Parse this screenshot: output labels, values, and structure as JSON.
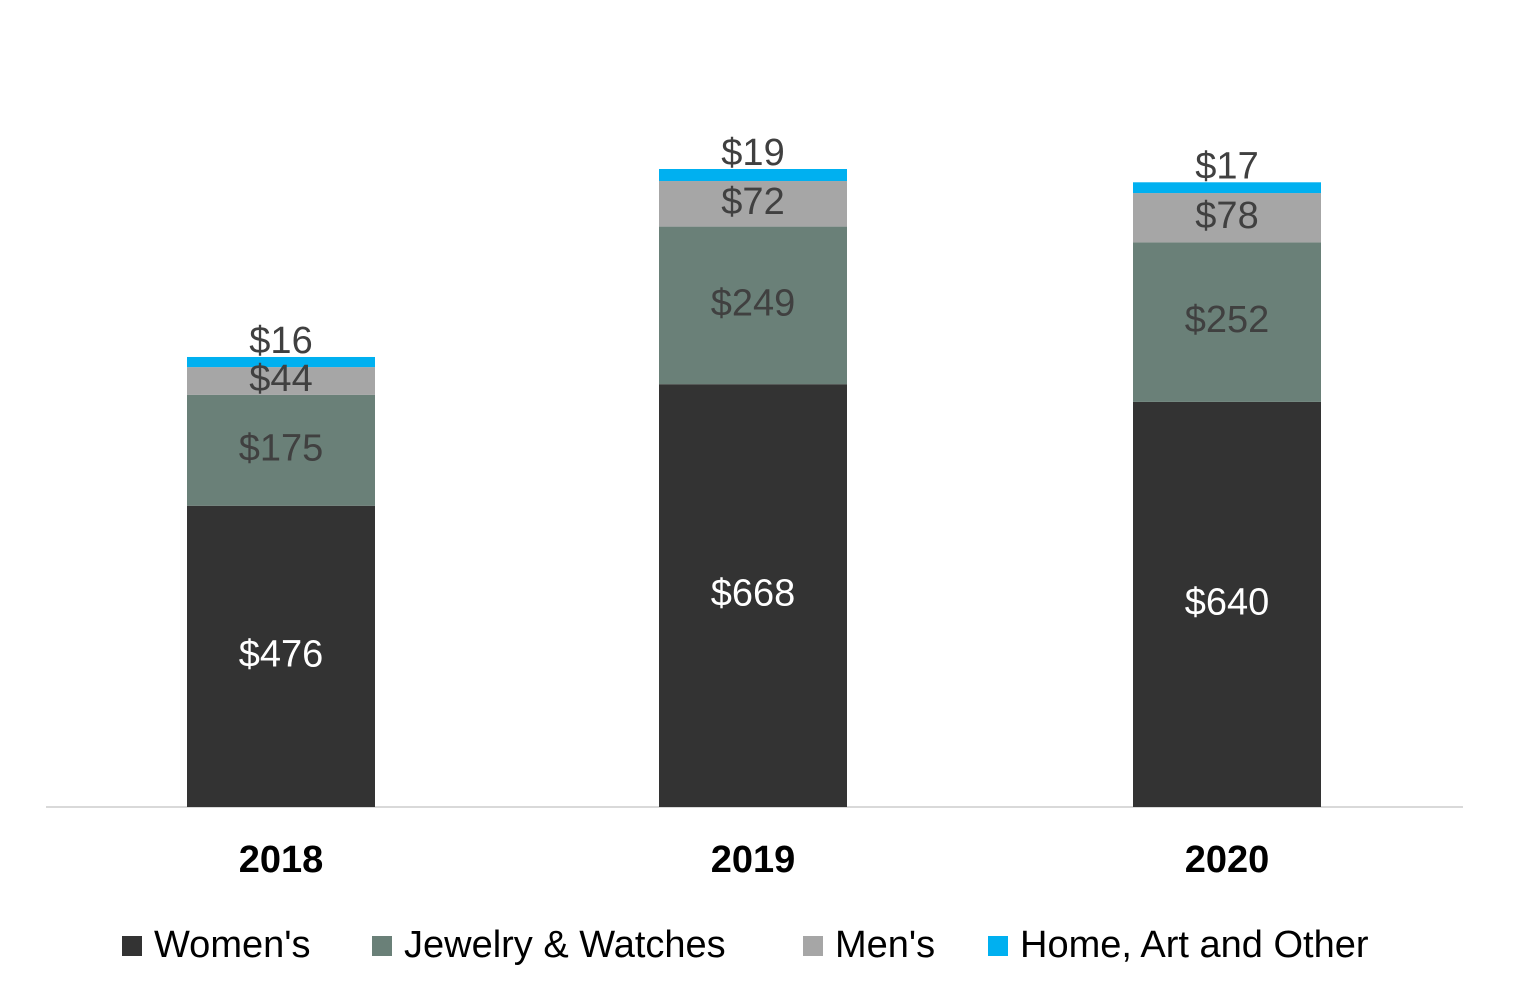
{
  "chart_data": {
    "type": "stacked_bar",
    "categories": [
      "2018",
      "2019",
      "2020"
    ],
    "series": [
      {
        "name": "Women's",
        "color": "#333333",
        "values": [
          476,
          668,
          640
        ],
        "value_labels": [
          "$476",
          "$668",
          "$640"
        ]
      },
      {
        "name": "Jewelry & Watches",
        "color": "#6a8078",
        "values": [
          175,
          249,
          252
        ],
        "value_labels": [
          "$175",
          "$249",
          "$252"
        ]
      },
      {
        "name": "Men's",
        "color": "#a6a6a6",
        "values": [
          44,
          72,
          78
        ],
        "value_labels": [
          "$44",
          "$72",
          "$78"
        ]
      },
      {
        "name": "Home, Art and Other",
        "color": "#00b0f0",
        "values": [
          16,
          19,
          17
        ],
        "value_labels": [
          "$16",
          "$19",
          "$17"
        ]
      }
    ]
  }
}
